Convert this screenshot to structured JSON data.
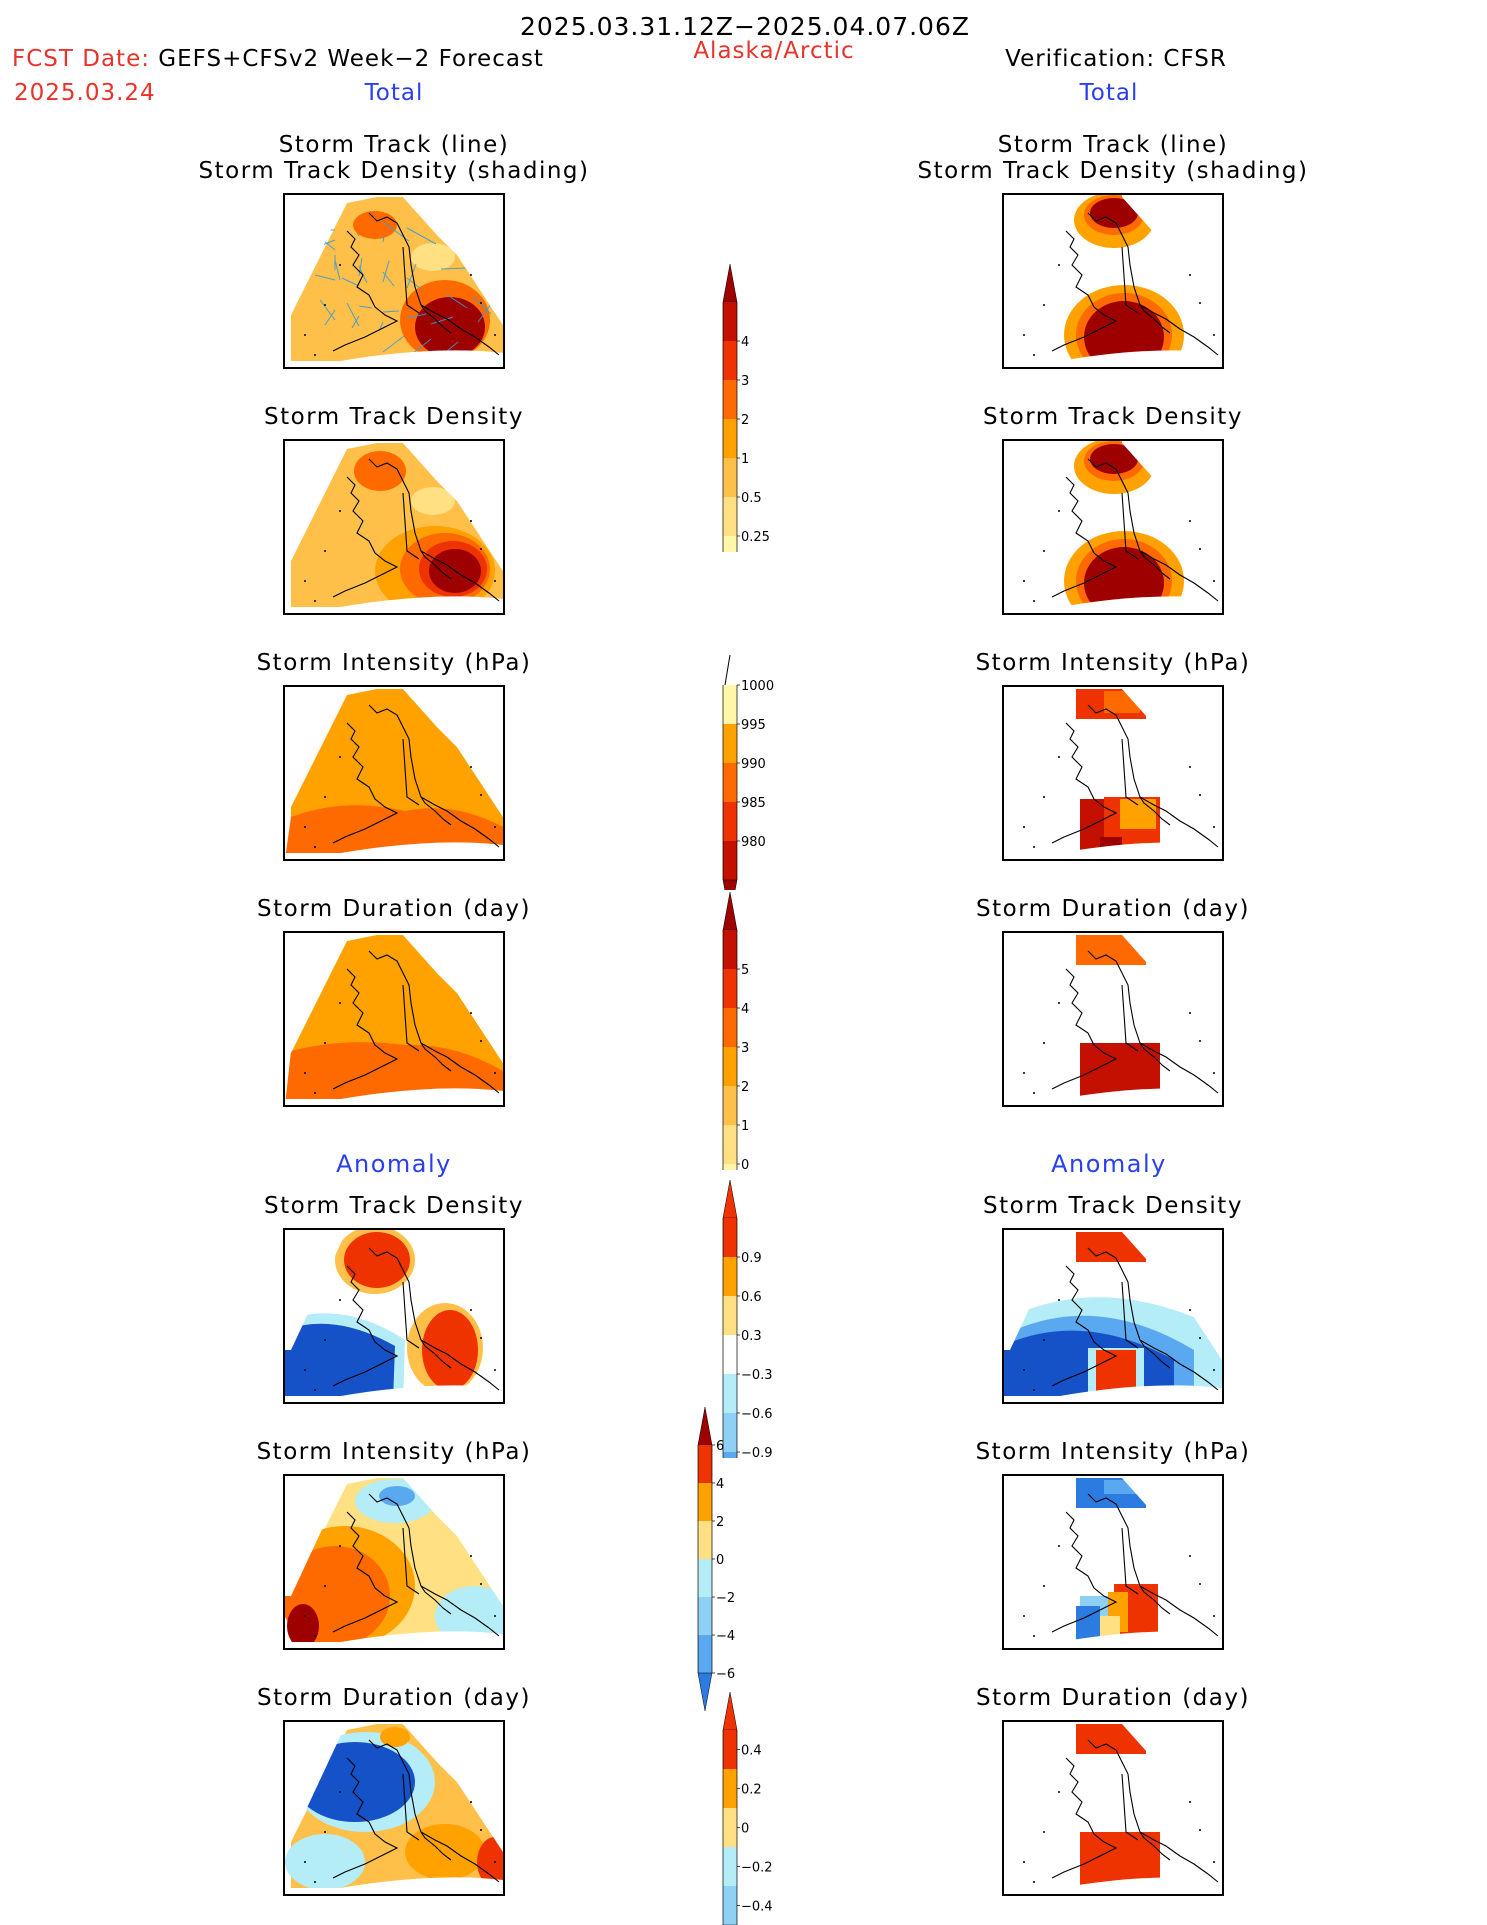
{
  "header": {
    "period": "2025.03.31.12Z−2025.04.07.06Z",
    "fcst_label": "FCST Date:",
    "fcst_model": "GEFS+CFSv2 Week−2 Forecast",
    "fcst_date": "2025.03.24",
    "region": "Alaska/Arctic",
    "verification": "Verification: CFSR",
    "left_section": "Total",
    "right_section": "Total"
  },
  "anomaly_labels": {
    "left": "Anomaly",
    "right": "Anomaly"
  },
  "panels": {
    "left": [
      {
        "title_line1": "Storm Track (line)",
        "title_line2": "Storm Track Density (shading)"
      },
      {
        "title_line1": "Storm Track Density",
        "title_line2": ""
      },
      {
        "title_line1": "Storm Intensity (hPa)",
        "title_line2": ""
      },
      {
        "title_line1": "Storm Duration (day)",
        "title_line2": ""
      },
      {
        "title_line1": "Storm Track Density",
        "title_line2": ""
      },
      {
        "title_line1": "Storm Intensity (hPa)",
        "title_line2": ""
      },
      {
        "title_line1": "Storm Duration (day)",
        "title_line2": ""
      }
    ],
    "right": [
      {
        "title_line1": "Storm Track (line)",
        "title_line2": "Storm Track Density (shading)"
      },
      {
        "title_line1": "Storm Track Density",
        "title_line2": ""
      },
      {
        "title_line1": "Storm Intensity (hPa)",
        "title_line2": ""
      },
      {
        "title_line1": "Storm Duration (day)",
        "title_line2": ""
      },
      {
        "title_line1": "Storm Track Density",
        "title_line2": ""
      },
      {
        "title_line1": "Storm Intensity (hPa)",
        "title_line2": ""
      },
      {
        "title_line1": "Storm Duration (day)",
        "title_line2": ""
      }
    ]
  },
  "colors": {
    "c_lightyellow": "#fff6a8",
    "c_paleyellow": "#ffe082",
    "c_lightorange": "#ffc04a",
    "c_orange": "#ffa200",
    "c_darkorange": "#ff6a00",
    "c_red": "#ee3300",
    "c_darkred": "#c41000",
    "c_maroon": "#9e0000",
    "c_lightblue": "#b4ecf7",
    "c_skyblue": "#8fd0f5",
    "c_midblue": "#5aa9f0",
    "c_blue": "#2b7be0",
    "c_darkblue": "#1552c8",
    "c_track": "#3a9bd6"
  },
  "chart_data": [
    {
      "type": "heatmap",
      "name": "Total Storm Track Density colorbar",
      "levels": [
        0.25,
        0.5,
        1,
        2,
        3,
        4
      ]
    },
    {
      "type": "heatmap",
      "name": "Total Storm Intensity colorbar (hPa)",
      "levels": [
        1000,
        995,
        990,
        985,
        980
      ]
    },
    {
      "type": "heatmap",
      "name": "Total Storm Duration colorbar (day)",
      "levels": [
        5,
        4,
        3,
        2,
        1,
        0
      ]
    },
    {
      "type": "heatmap",
      "name": "Anomaly Storm Track Density colorbar",
      "levels": [
        0.9,
        0.6,
        0.3,
        -0.3,
        -0.6,
        -0.9
      ]
    },
    {
      "type": "heatmap",
      "name": "Anomaly Storm Intensity colorbar (hPa)",
      "levels": [
        6,
        4,
        2,
        0,
        -2,
        -4,
        -6
      ]
    },
    {
      "type": "heatmap",
      "name": "Anomaly Storm Duration colorbar (day)",
      "levels": [
        0.4,
        0.2,
        0,
        -0.2,
        -0.4
      ]
    }
  ],
  "colorbars": {
    "density_total": [
      "4",
      "3",
      "2",
      "1",
      "0.5",
      "0.25"
    ],
    "intensity_total": [
      "1000",
      "995",
      "990",
      "985",
      "980"
    ],
    "duration_total": [
      "5",
      "4",
      "3",
      "2",
      "1",
      "0"
    ],
    "density_anom": [
      "0.9",
      "0.6",
      "0.3",
      "−0.3",
      "−0.6",
      "−0.9"
    ],
    "intensity_anom": [
      "6",
      "4",
      "2",
      "0",
      "−2",
      "−4",
      "−6"
    ],
    "duration_anom": [
      "0.4",
      "0.2",
      "0",
      "−0.2",
      "−0.4"
    ]
  }
}
